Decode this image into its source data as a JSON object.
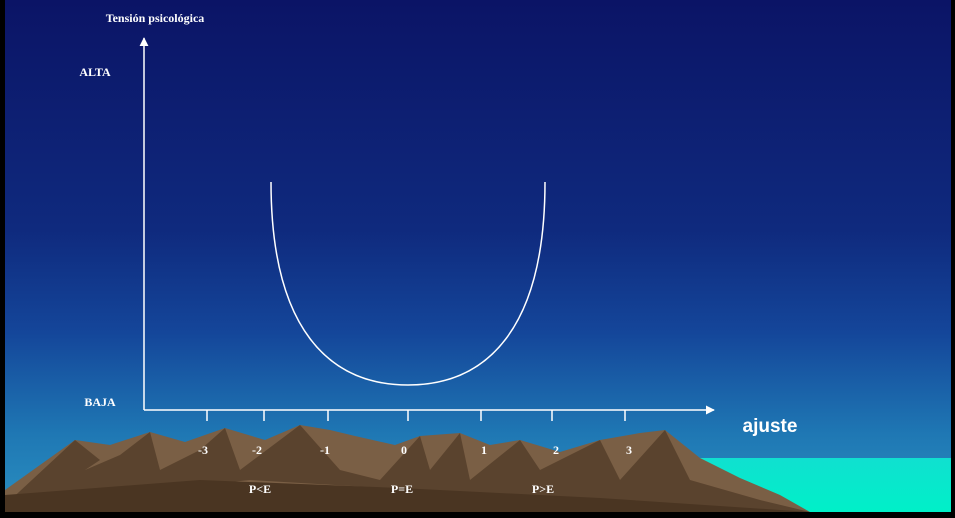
{
  "title": "Tensión psicológica",
  "y_axis": {
    "high": "ALTA",
    "low": "BAJA"
  },
  "x_axis": {
    "label": "ajuste",
    "ticks": [
      "-3",
      "-2",
      "-1",
      "0",
      "1",
      "2",
      "3"
    ]
  },
  "regions": [
    "P<E",
    "P=E",
    "P>E"
  ]
}
